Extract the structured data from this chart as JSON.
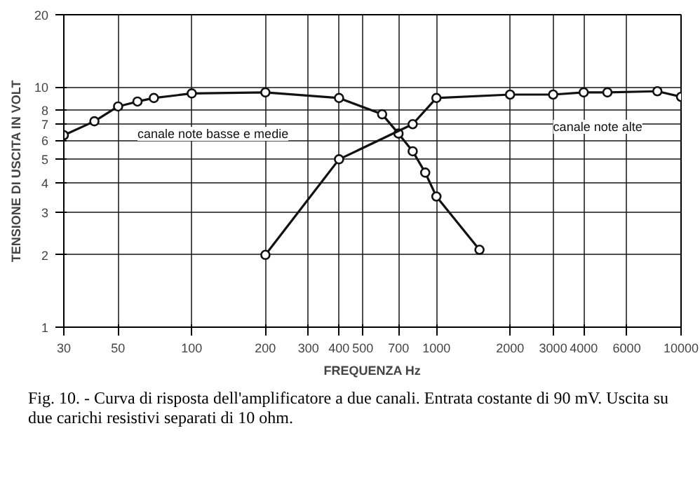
{
  "chart_data": {
    "type": "line",
    "xlabel": "FREQUENZA Hz",
    "ylabel": "TENSIONE DI USCITA IN VOLT",
    "log": "xy",
    "xlim": [
      30,
      10000
    ],
    "ylim": [
      1,
      20
    ],
    "xticks": [
      30,
      50,
      100,
      200,
      300,
      400,
      500,
      700,
      1000,
      2000,
      3000,
      4000,
      6000,
      10000
    ],
    "yticks": [
      1,
      2,
      3,
      4,
      5,
      6,
      7,
      8,
      10,
      20
    ],
    "grid": true,
    "marker": "circle",
    "line_style": "solid",
    "series": [
      {
        "name": "canale note basse e medie",
        "color": "#111111",
        "x": [
          30,
          40,
          50,
          60,
          70,
          100,
          200,
          400,
          600,
          700,
          800,
          900,
          1000,
          1500
        ],
        "values": [
          6.3,
          7.2,
          8.3,
          8.7,
          9.0,
          9.4,
          9.5,
          9.0,
          7.7,
          6.4,
          5.4,
          4.4,
          3.5,
          2.1
        ]
      },
      {
        "name": "canale note alte",
        "color": "#111111",
        "x": [
          200,
          400,
          800,
          1000,
          2000,
          3000,
          4000,
          5000,
          8000,
          10000
        ],
        "values": [
          2.0,
          5.0,
          7.0,
          9.0,
          9.3,
          9.3,
          9.5,
          9.5,
          9.6,
          9.1
        ]
      }
    ],
    "annotations": [
      "Fig. 10. - Curva di risposta dell'amplificatore a due canali. Entrata costante di 90 mV. Uscita su due carichi resistivi separati di 10 ohm."
    ]
  }
}
